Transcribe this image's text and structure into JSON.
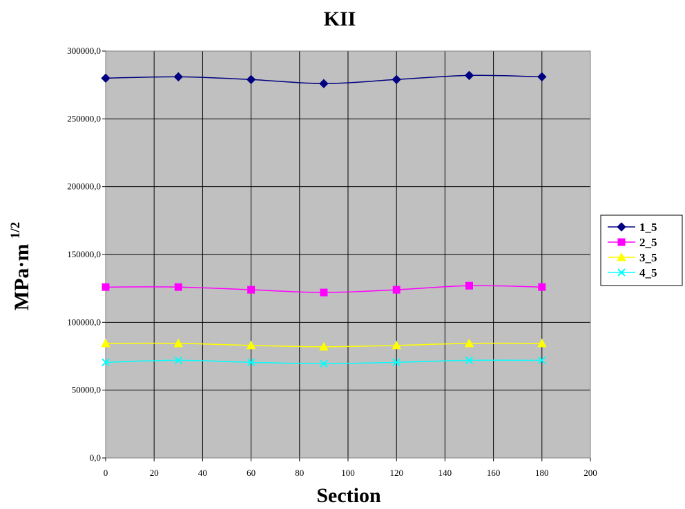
{
  "chart_data": {
    "type": "line",
    "title": "KII",
    "xlabel": "Section",
    "ylabel": "MPa·m",
    "ylabel_superscript": "1/2",
    "xlim": [
      0,
      200
    ],
    "ylim": [
      0,
      300000
    ],
    "x_ticks": [
      "0",
      "20",
      "40",
      "60",
      "80",
      "100",
      "120",
      "140",
      "160",
      "180",
      "200"
    ],
    "y_ticks": [
      "0,0",
      "50000,0",
      "100000,0",
      "150000,0",
      "200000,0",
      "250000,0",
      "300000,0"
    ],
    "grid": true,
    "legend_position": "right",
    "plot_background": "#c0c0c0",
    "x": [
      0,
      30,
      60,
      90,
      120,
      150,
      180
    ],
    "series": [
      {
        "name": "1_5",
        "values": [
          280000,
          281000,
          279000,
          276000,
          279000,
          282000,
          281000
        ],
        "color": "#000080",
        "marker": "diamond"
      },
      {
        "name": "2_5",
        "values": [
          126000,
          126000,
          124000,
          122000,
          124000,
          127000,
          126000
        ],
        "color": "#ff00ff",
        "marker": "square"
      },
      {
        "name": "3_5",
        "values": [
          84500,
          84500,
          83000,
          82000,
          83000,
          84500,
          84500
        ],
        "color": "#ffff00",
        "marker": "triangle"
      },
      {
        "name": "4_5",
        "values": [
          70500,
          72000,
          70500,
          69500,
          70500,
          72000,
          72000
        ],
        "color": "#00ffff",
        "marker": "x"
      }
    ]
  }
}
